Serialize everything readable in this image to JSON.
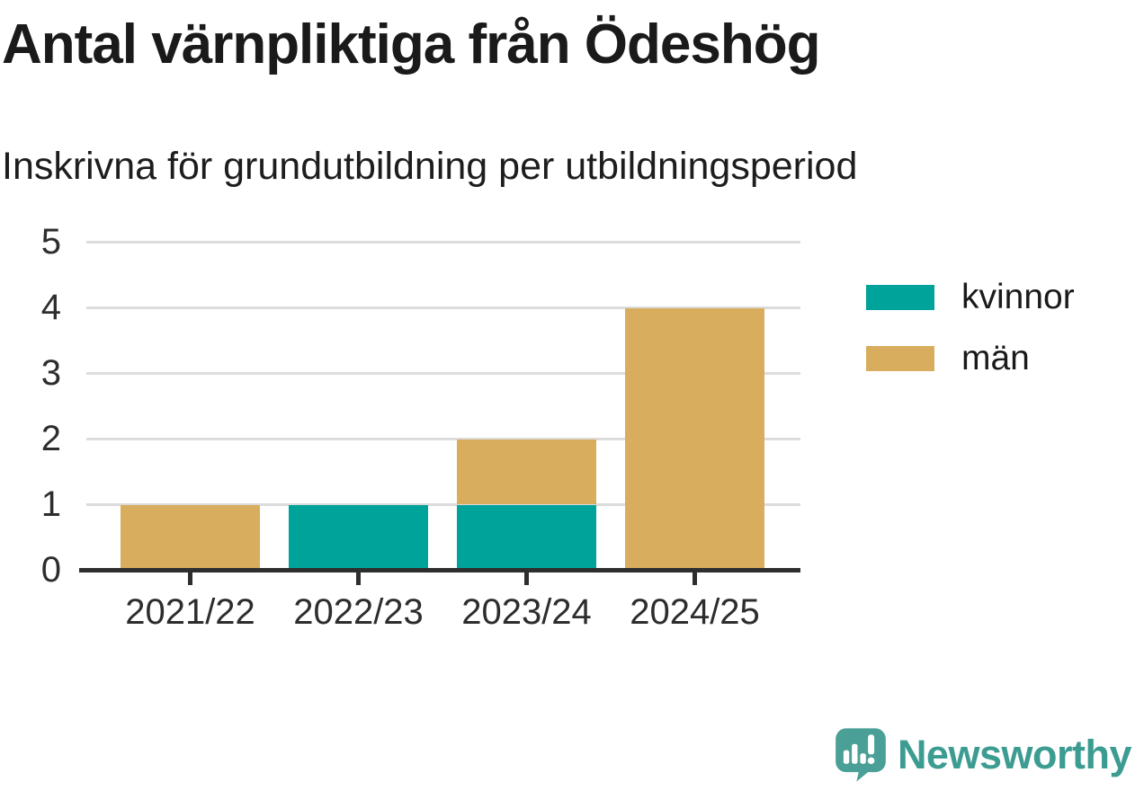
{
  "header": {
    "title": "Antal värnpliktiga från Ödeshög",
    "subtitle": "Inskrivna för grundutbildning per utbildningsperiod"
  },
  "chart_data": {
    "type": "bar",
    "stacked": true,
    "title": "Antal värnpliktiga från Ödeshög",
    "subtitle": "Inskrivna för grundutbildning per utbildningsperiod",
    "categories": [
      "2021/22",
      "2022/23",
      "2023/24",
      "2024/25"
    ],
    "series": [
      {
        "name": "kvinnor",
        "color": "#00a39a",
        "values": [
          0,
          1,
          1,
          0
        ]
      },
      {
        "name": "män",
        "color": "#d9ad5e",
        "values": [
          1,
          0,
          1,
          4
        ]
      }
    ],
    "totals": [
      1,
      1,
      2,
      4
    ],
    "xlabel": "",
    "ylabel": "",
    "ylim": [
      0,
      5
    ],
    "yticks": [
      0,
      1,
      2,
      3,
      4,
      5
    ],
    "grid": "horizontal",
    "legend_position": "right"
  },
  "colors": {
    "kvinnor": "#00a39a",
    "man": "#d9ad5e",
    "gridline": "#dcdcdc",
    "axis": "#2e2e2e",
    "text": "#1a1a1a",
    "brand_teal": "#3d9c92",
    "logo_icon_teal": "#4aa096"
  },
  "footer": {
    "brand": "Newsworthy",
    "logo_icon": "speech-bubble-bar-chart-icon"
  }
}
